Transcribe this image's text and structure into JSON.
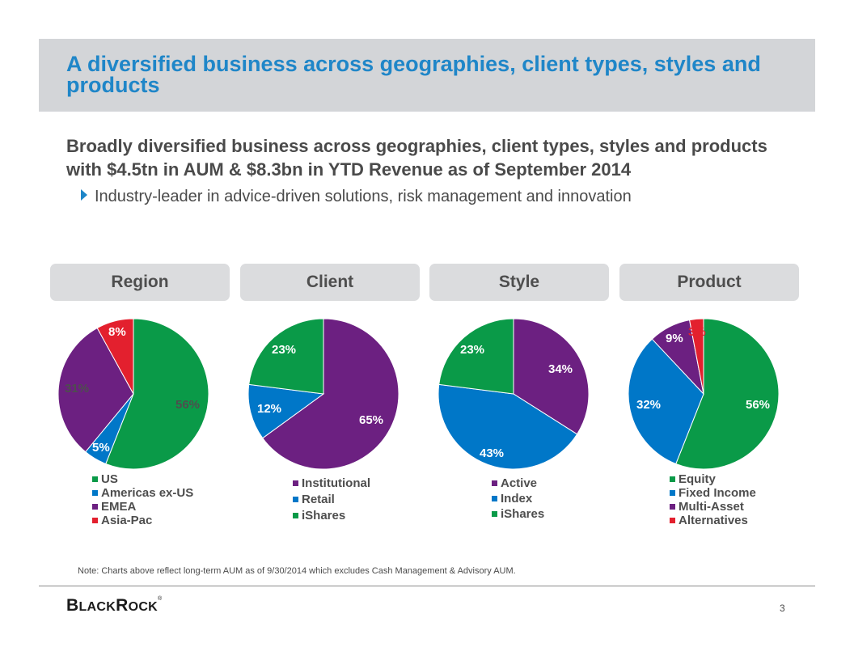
{
  "slide": {
    "title": "A diversified business across geographies, client types, styles and products",
    "subtitle": "Broadly diversified business across geographies, client types, styles and products with $4.5tn in AUM & $8.3bn in YTD Revenue as of September 2014",
    "bullet": "Industry-leader in advice-driven solutions, risk management and innovation",
    "footnote": "Note: Charts above reflect long-term AUM as of 9/30/2014 which excludes Cash Management & Advisory AUM.",
    "logo": "BlackRock",
    "page_number": "3"
  },
  "colors": {
    "green": "#0a9a48",
    "blue": "#0077c8",
    "purple": "#6c2081",
    "red": "#e3202e",
    "title_blue": "#1f86c8"
  },
  "chart_data": [
    {
      "type": "pie",
      "title": "Region",
      "categories": [
        "US",
        "Americas ex-US",
        "EMEA",
        "Asia-Pac"
      ],
      "values": [
        56,
        5,
        31,
        8
      ],
      "labels": [
        "56%",
        "5%",
        "31%",
        "8%"
      ],
      "colors": [
        "#0a9a48",
        "#0077c8",
        "#6c2081",
        "#e3202e"
      ],
      "legend": "bottom"
    },
    {
      "type": "pie",
      "title": "Client",
      "categories": [
        "Institutional",
        "Retail",
        "iShares"
      ],
      "values": [
        65,
        12,
        23
      ],
      "labels": [
        "65%",
        "12%",
        "23%"
      ],
      "colors": [
        "#6c2081",
        "#0077c8",
        "#0a9a48"
      ],
      "legend": "bottom"
    },
    {
      "type": "pie",
      "title": "Style",
      "categories": [
        "Active",
        "Index",
        "iShares"
      ],
      "values": [
        34,
        43,
        23
      ],
      "labels": [
        "34%",
        "43%",
        "23%"
      ],
      "colors": [
        "#6c2081",
        "#0077c8",
        "#0a9a48"
      ],
      "legend": "bottom"
    },
    {
      "type": "pie",
      "title": "Product",
      "categories": [
        "Equity",
        "Fixed Income",
        "Multi-Asset",
        "Alternatives"
      ],
      "values": [
        56,
        32,
        9,
        3
      ],
      "labels": [
        "56%",
        "32%",
        "9%",
        "3%"
      ],
      "colors": [
        "#0a9a48",
        "#0077c8",
        "#6c2081",
        "#e3202e"
      ],
      "legend": "bottom"
    }
  ]
}
